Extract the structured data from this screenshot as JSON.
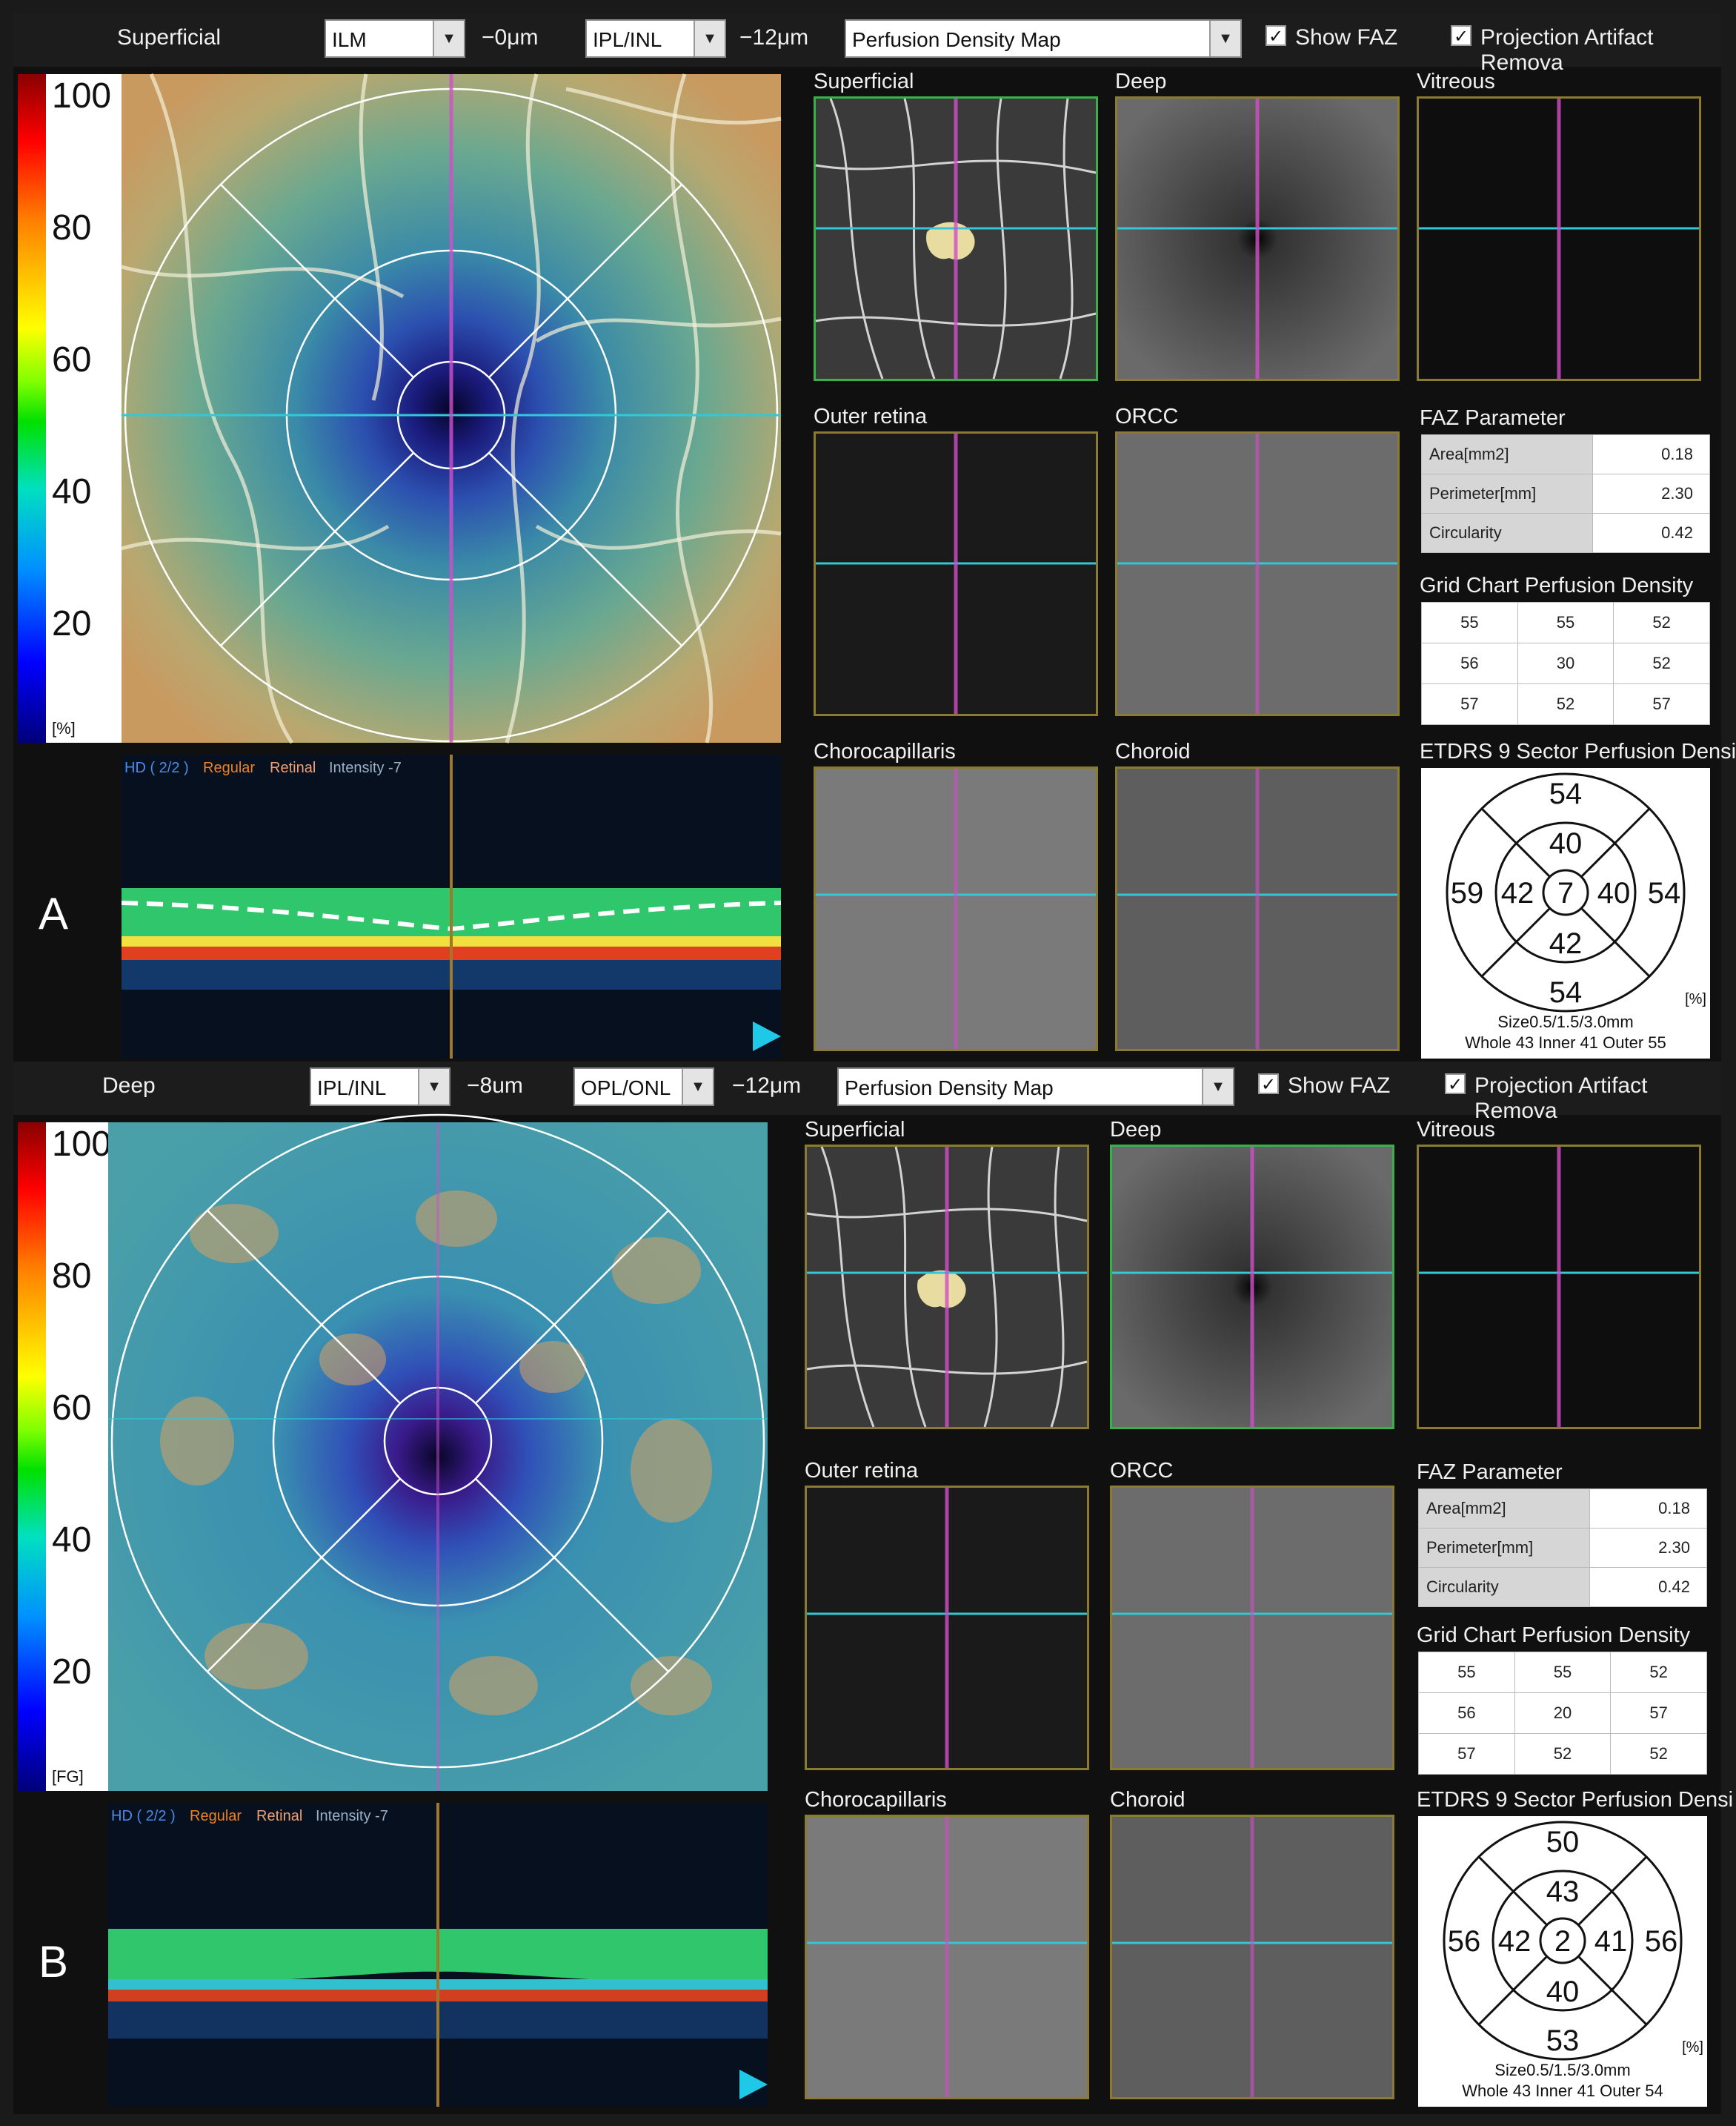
{
  "panels": [
    {
      "letter": "A",
      "toolbar": {
        "layer": "Superficial",
        "upper_select": "ILM",
        "upper_offset": "−0μm",
        "lower_select": "IPL/INL",
        "lower_offset": "−12μm",
        "map_select": "Perfusion Density Map",
        "show_faz_checked": true,
        "show_faz_label": "Show FAZ",
        "projection_checked": true,
        "projection_label": "Projection Artifact Remova"
      },
      "colorbar": {
        "ticks": [
          "100",
          "80",
          "60",
          "40",
          "20"
        ],
        "unit": "[%]"
      },
      "bscan_header": {
        "hd": "HD ( 2/2 )",
        "mode": "Regular",
        "type": "Retinal",
        "intensity": "Intensity -7"
      },
      "thumbnails": [
        "Superficial",
        "Deep",
        "Vitreous",
        "Outer retina",
        "ORCC",
        "Chorocapillaris",
        "Choroid"
      ],
      "active_thumbnail": "Superficial",
      "faz": {
        "title": "FAZ Parameter",
        "rows": [
          {
            "label": "Area[mm2]",
            "value": "0.18"
          },
          {
            "label": "Perimeter[mm]",
            "value": "2.30"
          },
          {
            "label": "Circularity",
            "value": "0.42"
          }
        ]
      },
      "grid_chart": {
        "title": "Grid Chart Perfusion Density",
        "rows": [
          [
            "55",
            "55",
            "52"
          ],
          [
            "56",
            "30",
            "52"
          ],
          [
            "57",
            "52",
            "57"
          ]
        ]
      },
      "etdrs": {
        "title": "ETDRS 9 Sector Perfusion Densi",
        "center": "7",
        "inner_top": "40",
        "inner_left": "42",
        "inner_right": "40",
        "inner_bottom": "42",
        "outer_top": "54",
        "outer_left": "59",
        "outer_right": "54",
        "outer_bottom": "54",
        "unit": "[%]",
        "size": "Size0.5/1.5/3.0mm",
        "summary": "Whole 43  Inner 41  Outer 55"
      }
    },
    {
      "letter": "B",
      "toolbar": {
        "layer": "Deep",
        "upper_select": "IPL/INL",
        "upper_offset": "−8um",
        "lower_select": "OPL/ONL",
        "lower_offset": "−12μm",
        "map_select": "Perfusion Density Map",
        "show_faz_checked": true,
        "show_faz_label": "Show FAZ",
        "projection_checked": true,
        "projection_label": "Projection Artifact Remova"
      },
      "colorbar": {
        "ticks": [
          "100",
          "80",
          "60",
          "40",
          "20"
        ],
        "unit": "[FG]"
      },
      "bscan_header": {
        "hd": "HD ( 2/2 )",
        "mode": "Regular",
        "type": "Retinal",
        "intensity": "Intensity -7"
      },
      "thumbnails": [
        "Superficial",
        "Deep",
        "Vitreous",
        "Outer retina",
        "ORCC",
        "Chorocapillaris",
        "Choroid"
      ],
      "active_thumbnail": "Deep",
      "faz": {
        "title": "FAZ Parameter",
        "rows": [
          {
            "label": "Area[mm2]",
            "value": "0.18"
          },
          {
            "label": "Perimeter[mm]",
            "value": "2.30"
          },
          {
            "label": "Circularity",
            "value": "0.42"
          }
        ]
      },
      "grid_chart": {
        "title": "Grid Chart Perfusion Density",
        "rows": [
          [
            "55",
            "55",
            "52"
          ],
          [
            "56",
            "20",
            "57"
          ],
          [
            "57",
            "52",
            "52"
          ]
        ]
      },
      "etdrs": {
        "title": "ETDRS 9 Sector Perfusion Densi",
        "center": "2",
        "inner_top": "43",
        "inner_left": "42",
        "inner_right": "41",
        "inner_bottom": "40",
        "outer_top": "50",
        "outer_left": "56",
        "outer_right": "56",
        "outer_bottom": "53",
        "unit": "[%]",
        "size": "Size0.5/1.5/3.0mm",
        "summary": "Whole 43  Inner 41  Outer 54"
      }
    }
  ],
  "colors": {
    "crosshair_cyan": "#32c8d8",
    "crosshair_magenta": "#d050c8",
    "active_border": "#3bb04a",
    "frame_border": "#8a7a32",
    "faz_fill": "#e8dca0"
  }
}
